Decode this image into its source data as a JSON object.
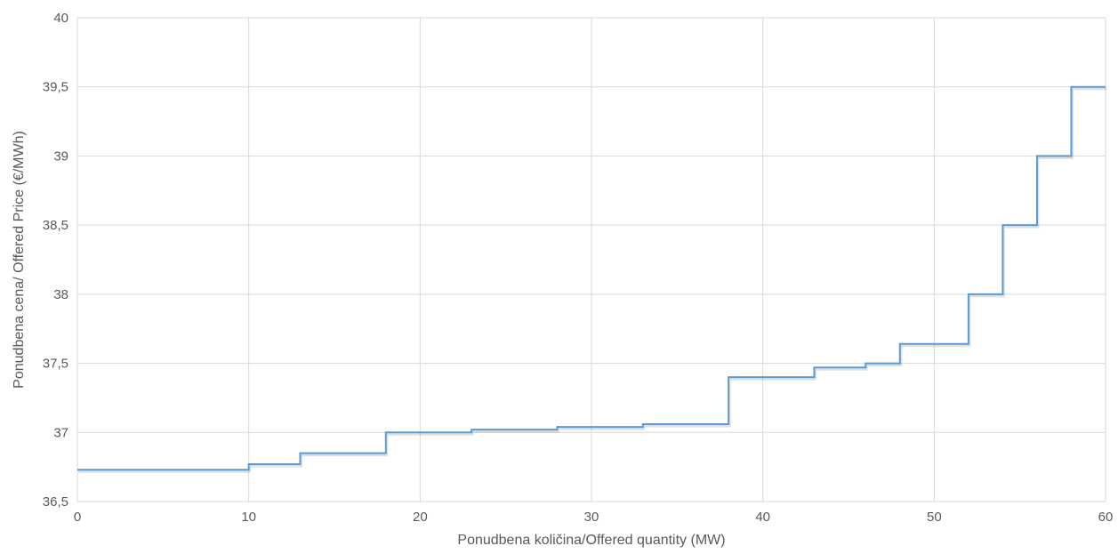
{
  "chart_data": {
    "type": "line",
    "step": true,
    "title": "",
    "xlabel": "Ponudbena količina/Offered quantity (MW)",
    "ylabel": "Ponudbena cena/ Offered Price (€/MWh)",
    "xlim": [
      0,
      60
    ],
    "ylim": [
      36.5,
      40
    ],
    "xticks": [
      0,
      10,
      20,
      30,
      40,
      50,
      60
    ],
    "xtick_labels": [
      "0",
      "10",
      "20",
      "30",
      "40",
      "50",
      "60"
    ],
    "yticks": [
      36.5,
      37,
      37.5,
      38,
      38.5,
      39,
      39.5,
      40
    ],
    "ytick_labels": [
      "36,5",
      "37",
      "37,5",
      "38",
      "38,5",
      "39",
      "39,5",
      "40"
    ],
    "grid": true,
    "line_color": "#5b9bd5",
    "series": [
      {
        "x": [
          0,
          10,
          13,
          18,
          23,
          28,
          33,
          38,
          43,
          46,
          48,
          52,
          54,
          56,
          58,
          60
        ],
        "y": [
          36.73,
          36.77,
          36.85,
          37.0,
          37.02,
          37.04,
          37.06,
          37.4,
          37.47,
          37.5,
          37.64,
          38.0,
          38.5,
          39.0,
          39.5,
          39.5
        ]
      }
    ]
  }
}
